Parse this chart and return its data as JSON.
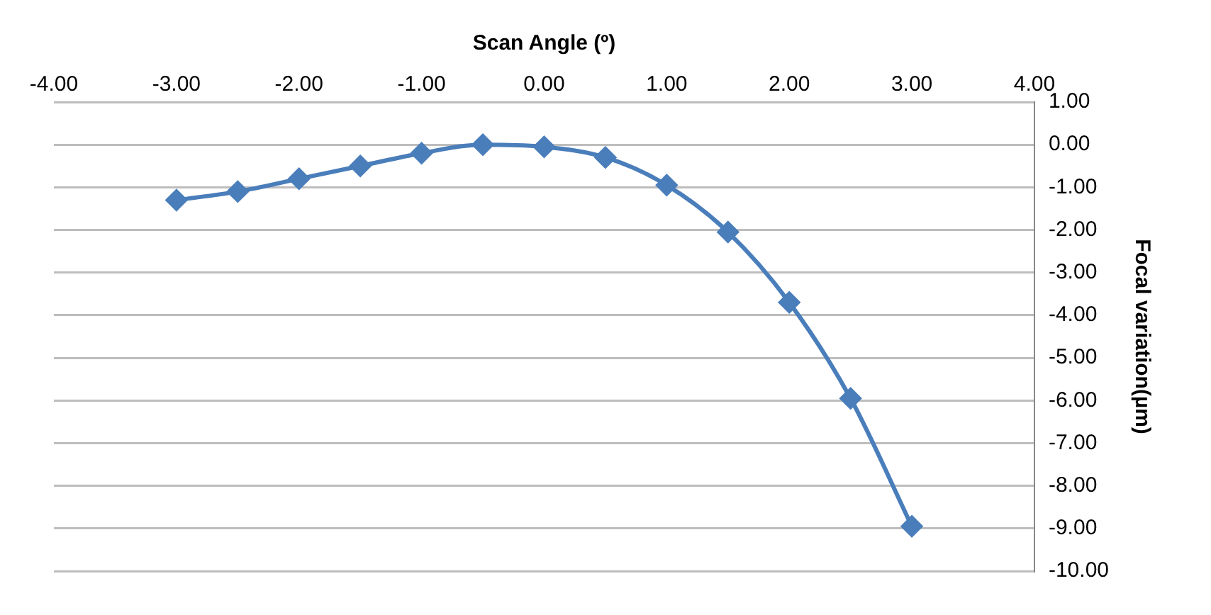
{
  "chart_data": {
    "type": "line",
    "xlabel": "Scan Angle (º)",
    "ylabel": "Focal variation(µm)",
    "x": [
      -3,
      -2.5,
      -2,
      -1.5,
      -1,
      -0.5,
      0,
      0.5,
      1,
      1.5,
      2,
      2.5,
      3
    ],
    "series": [
      {
        "color": "#4a7ebb",
        "values": [
          -1.3,
          -1.1,
          -0.8,
          -0.5,
          -0.2,
          0,
          -0.05,
          -0.3,
          -0.95,
          -2.05,
          -3.7,
          -5.95,
          -8.95
        ]
      }
    ],
    "xlim": [
      -4,
      4
    ],
    "xticks": [
      {
        "value": -4,
        "label": "-4.00"
      },
      {
        "value": -3,
        "label": "-3.00"
      },
      {
        "value": -2,
        "label": "-2.00"
      },
      {
        "value": -1,
        "label": "-1.00"
      },
      {
        "value": 0,
        "label": "0.00"
      },
      {
        "value": 1,
        "label": "1.00"
      },
      {
        "value": 2,
        "label": "2.00"
      },
      {
        "value": 3,
        "label": "3.00"
      },
      {
        "value": 4,
        "label": "4.00"
      }
    ],
    "ylim": [
      -10,
      1
    ],
    "yticks": [
      {
        "value": 1,
        "label": "1.00"
      },
      {
        "value": 0,
        "label": "0.00"
      },
      {
        "value": -1,
        "label": "-1.00"
      },
      {
        "value": -2,
        "label": "-2.00"
      },
      {
        "value": -3,
        "label": "-3.00"
      },
      {
        "value": -4,
        "label": "-4.00"
      },
      {
        "value": -5,
        "label": "-5.00"
      },
      {
        "value": -6,
        "label": "-6.00"
      },
      {
        "value": -7,
        "label": "-7.00"
      },
      {
        "value": -8,
        "label": "-8.00"
      },
      {
        "value": -9,
        "label": "-9.00"
      },
      {
        "value": -10,
        "label": "-10.00"
      }
    ],
    "grid": "y",
    "legend": false,
    "marker": "diamond",
    "line_style": "solid"
  }
}
